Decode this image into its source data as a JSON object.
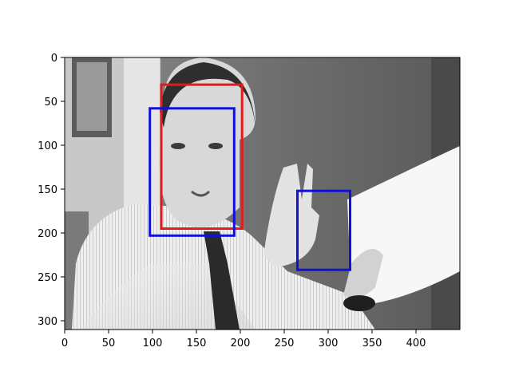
{
  "chart_data": {
    "type": "image-with-boxes",
    "image": {
      "description_hidden": true,
      "width": 450,
      "height": 310,
      "grayscale": true
    },
    "xlim": [
      0,
      450
    ],
    "ylim": [
      310,
      0
    ],
    "xticks": [
      0,
      50,
      100,
      150,
      200,
      250,
      300,
      350,
      400
    ],
    "yticks": [
      0,
      50,
      100,
      150,
      200,
      250,
      300
    ],
    "boxes": [
      {
        "color": "#e41a1c",
        "x0": 110,
        "y0": 31,
        "x1": 202,
        "y1": 195
      },
      {
        "color": "#1010d8",
        "x0": 97,
        "y0": 58,
        "x1": 193,
        "y1": 203
      },
      {
        "color": "#1010d8",
        "x0": 265,
        "y0": 152,
        "x1": 325,
        "y1": 242
      }
    ]
  }
}
